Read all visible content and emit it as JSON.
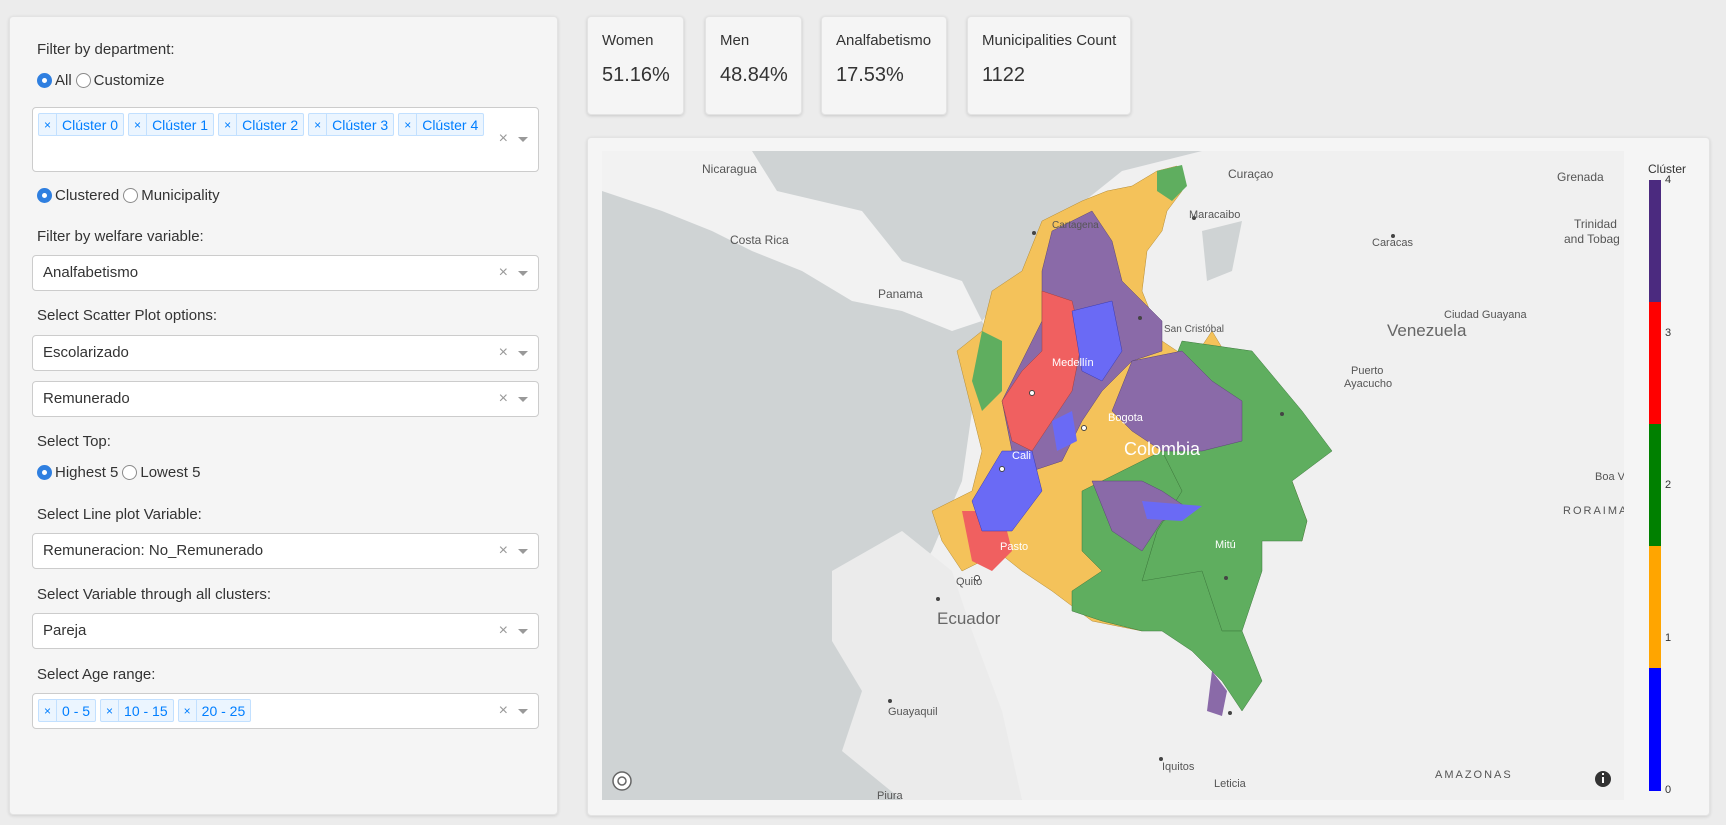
{
  "filters": {
    "department_label": "Filter by department:",
    "department_options": [
      "All",
      "Customize"
    ],
    "department_selected": "All",
    "cluster_tags": [
      "Clúster 0",
      "Clúster 1",
      "Clúster 2",
      "Clúster 3",
      "Clúster 4"
    ],
    "view_options": [
      "Clustered",
      "Municipality"
    ],
    "view_selected": "Clustered",
    "welfare_label": "Filter by welfare variable:",
    "welfare_value": "Analfabetismo",
    "scatter_label": "Select Scatter Plot options:",
    "scatter_x_value": "Escolarizado",
    "scatter_y_value": "Remunerado",
    "top_label": "Select Top:",
    "top_options": [
      "Highest 5",
      "Lowest 5"
    ],
    "top_selected": "Highest 5",
    "line_label": "Select Line plot Variable:",
    "line_value": "Remuneracion: No_Remunerado",
    "allclusters_label": "Select Variable through all clusters:",
    "allclusters_value": "Pareja",
    "age_label": "Select Age range:",
    "age_tags": [
      "0 - 5",
      "10 - 15",
      "20 - 25"
    ],
    "tag_remove_glyph": "×",
    "clear_glyph": "×"
  },
  "stats": [
    {
      "label": "Women",
      "value": "51.16%"
    },
    {
      "label": "Men",
      "value": "48.84%"
    },
    {
      "label": "Analfabetismo",
      "value": "17.53%"
    },
    {
      "label": "Municipalities Count",
      "value": "1122"
    }
  ],
  "map": {
    "places": {
      "nicaragua": "Nicaragua",
      "costa_rica": "Costa Rica",
      "panama": "Panama",
      "curacao": "Curaçao",
      "grenada": "Grenada",
      "trinidad": "Trinidad",
      "tobago": "and Tobag",
      "maracaibo": "Maracaibo",
      "caracas": "Caracas",
      "cartagena": "Cartagena",
      "san_cristobal": "San Cristóbal",
      "ciudad_guayana": "Ciudad Guayana",
      "venezuela": "Venezuela",
      "puerto": "Puerto",
      "ayacucho": "Ayacucho",
      "medellin": "Medellín",
      "bogota": "Bogota",
      "colombia": "Colombia",
      "cali": "Cali",
      "boa": "Boa V",
      "roraima": "RORAIMA",
      "mitu": "Mitú",
      "pasto": "Pasto",
      "quito": "Quito",
      "ecuador": "Ecuador",
      "guayaquil": "Guayaquil",
      "iquitos": "Iquitos",
      "amazonas": "AMAZONAS",
      "leticia": "Leticia",
      "piura": "Piura"
    },
    "legend_title": "Clúster",
    "legend_ticks": [
      "0",
      "1",
      "2",
      "3",
      "4"
    ],
    "cluster_colors": [
      "#0000ff",
      "#ffa500",
      "#008000",
      "#ff0000",
      "#4b2a7f"
    ],
    "fill_colors": {
      "c0": "#6a6af5",
      "c1": "#f4c25a",
      "c2": "#5fae5f",
      "c3": "#f06060",
      "c4": "#8a6aa8"
    }
  }
}
